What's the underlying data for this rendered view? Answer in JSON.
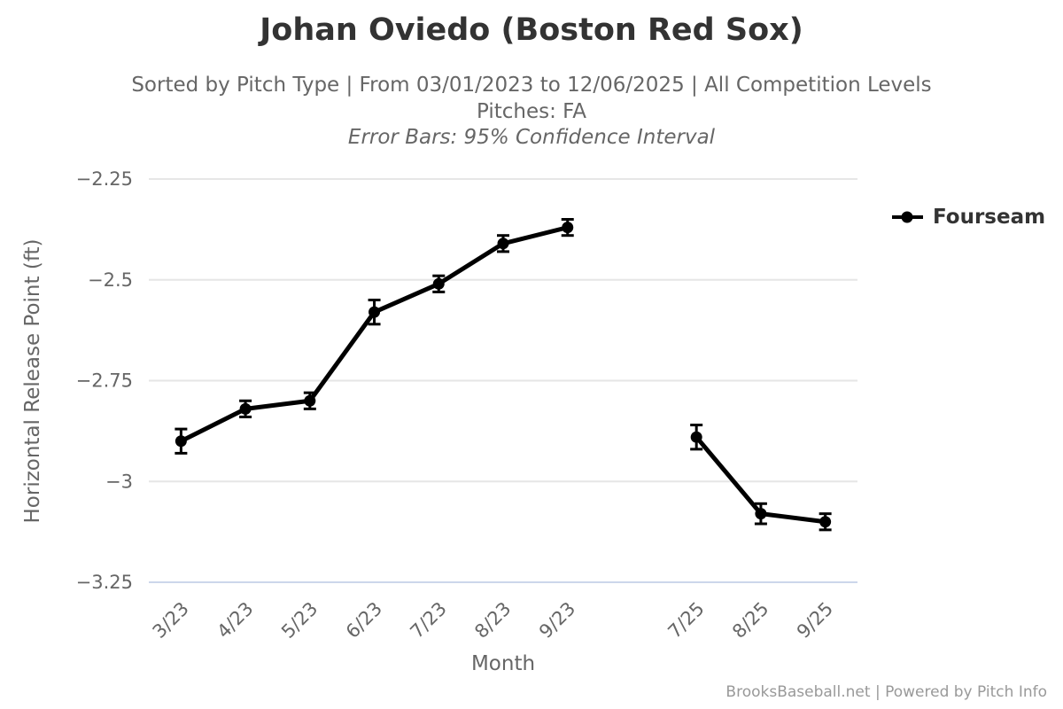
{
  "header": {
    "title": "Johan Oviedo (Boston Red Sox)",
    "subtitle_line1": "Sorted by Pitch Type | From 03/01/2023 to 12/06/2025 | All Competition Levels",
    "subtitle_line2": "Pitches: FA",
    "subtitle_line3": "Error Bars: 95% Confidence Interval"
  },
  "chart_data": {
    "type": "line",
    "title": "Johan Oviedo (Boston Red Sox)",
    "categories": [
      "3/23",
      "4/23",
      "5/23",
      "6/23",
      "7/23",
      "8/23",
      "9/23",
      "",
      "7/25",
      "8/25",
      "9/25"
    ],
    "series": [
      {
        "name": "Fourseam",
        "color": "#000000",
        "values": [
          -2.9,
          -2.82,
          -2.8,
          -2.58,
          -2.51,
          -2.41,
          -2.37,
          null,
          -2.89,
          -3.08,
          -3.1
        ],
        "ci95": [
          0.03,
          0.02,
          0.02,
          0.03,
          0.02,
          0.02,
          0.02,
          null,
          0.03,
          0.025,
          0.02
        ]
      }
    ],
    "xlabel": "Month",
    "ylabel": "Horizontal Release Point (ft)",
    "ylim": [
      -3.25,
      -2.25
    ],
    "yticks": [
      -2.25,
      -2.5,
      -2.75,
      -3,
      -3.25
    ],
    "grid": true,
    "legend_position": "right",
    "error_bars_note": "95% Confidence Interval"
  },
  "footer": {
    "credits": "BrooksBaseball.net | Powered by Pitch Info"
  },
  "colors": {
    "series": "#000000",
    "grid": "#e6e6e6",
    "axis_line": "#ccd6eb",
    "text_dark": "#333333",
    "text_gray": "#666666",
    "credits": "#999999"
  }
}
